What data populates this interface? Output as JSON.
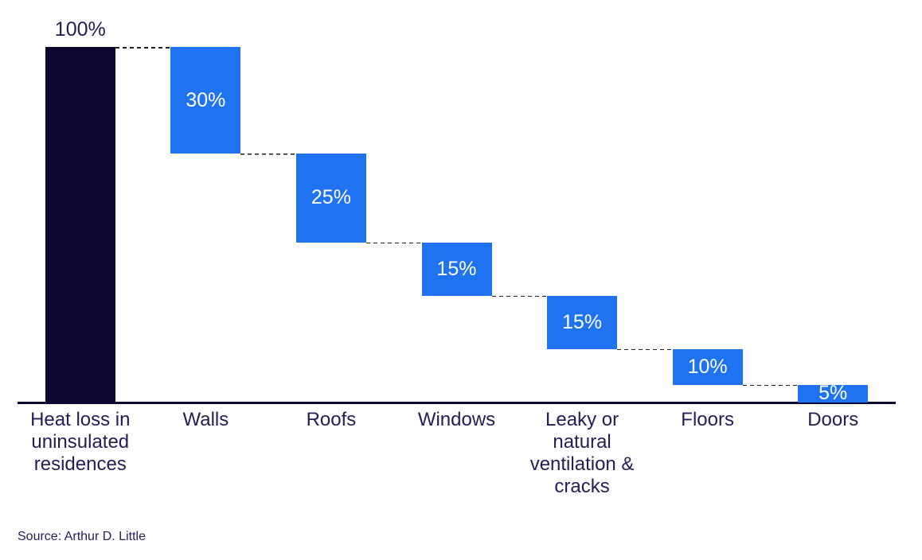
{
  "chart_data": {
    "type": "bar",
    "subtype": "waterfall",
    "title": "",
    "xlabel": "",
    "ylabel": "",
    "ylim": [
      0,
      100
    ],
    "grid": false,
    "legend": false,
    "categories": [
      "Heat loss in uninsulated residences",
      "Walls",
      "Roofs",
      "Windows",
      "Leaky or natural ventilation & cracks",
      "Floors",
      "Doors"
    ],
    "values": [
      100,
      30,
      25,
      15,
      15,
      10,
      5
    ],
    "value_labels": [
      "100%",
      "30%",
      "25%",
      "15%",
      "15%",
      "10%",
      "5%"
    ],
    "bar_kinds": [
      "total",
      "decrease",
      "decrease",
      "decrease",
      "decrease",
      "decrease",
      "decrease"
    ],
    "cumulative_tops": [
      100,
      100,
      70,
      45,
      30,
      15,
      5
    ],
    "cumulative_bottoms": [
      0,
      70,
      45,
      30,
      15,
      5,
      0
    ],
    "source": "Source: Arthur D. Little",
    "colors": {
      "total_bar": "#0d0630",
      "decrease_bar": "#1f73f0",
      "value_text_inside": "#ffffff",
      "value_text_outside": "#211e54",
      "category_text": "#211e54",
      "axis_line": "#0d0630",
      "connector_line": "#1f1f1f",
      "background": "#ffffff"
    }
  }
}
